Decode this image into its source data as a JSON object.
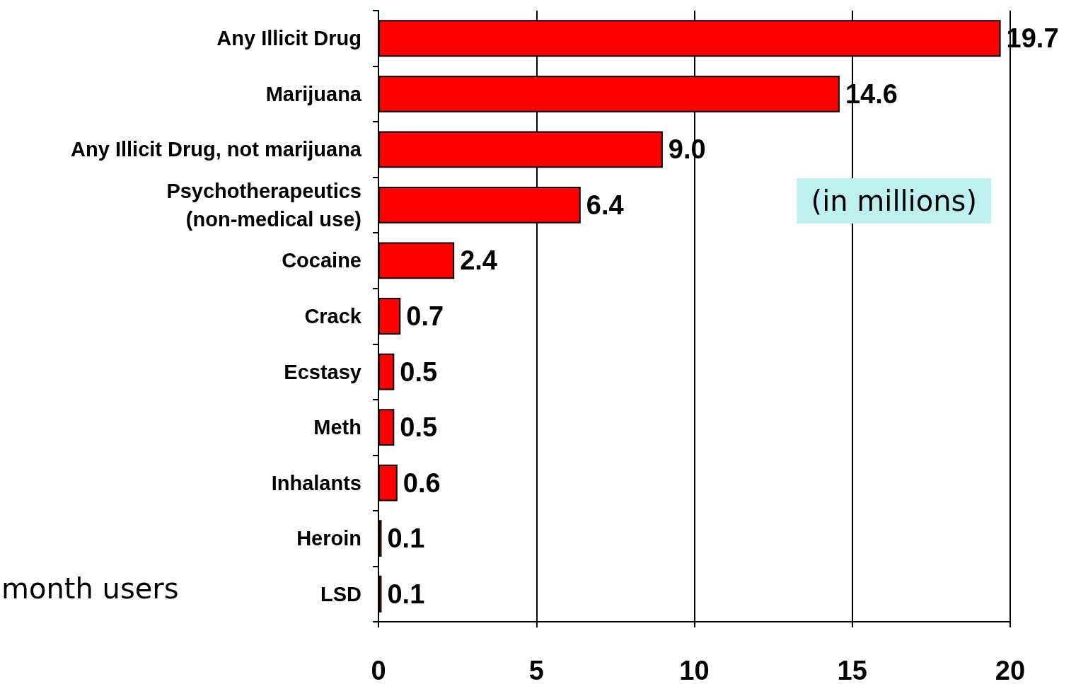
{
  "chart_data": {
    "type": "bar",
    "orientation": "horizontal",
    "categories": [
      "Any Illicit Drug",
      "Marijuana",
      "Any Illicit Drug, not marijuana",
      "Psychotherapeutics\n(non-medical use)",
      "Cocaine",
      "Crack",
      "Ecstasy",
      "Meth",
      "Inhalants",
      "Heroin",
      "LSD"
    ],
    "values": [
      19.7,
      14.6,
      9.0,
      6.4,
      2.4,
      0.7,
      0.5,
      0.5,
      0.6,
      0.1,
      0.1
    ],
    "value_labels": [
      "19.7",
      "14.6",
      "9.0",
      "6.4",
      "2.4",
      "0.7",
      "0.5",
      "0.5",
      "0.6",
      "0.1",
      "0.1"
    ],
    "color": "#ff0000",
    "xlim": [
      0,
      20
    ],
    "xticks": [
      0,
      5,
      10,
      15,
      20
    ],
    "grid": "x",
    "annotations": [
      "(in millions)",
      "month users"
    ]
  }
}
